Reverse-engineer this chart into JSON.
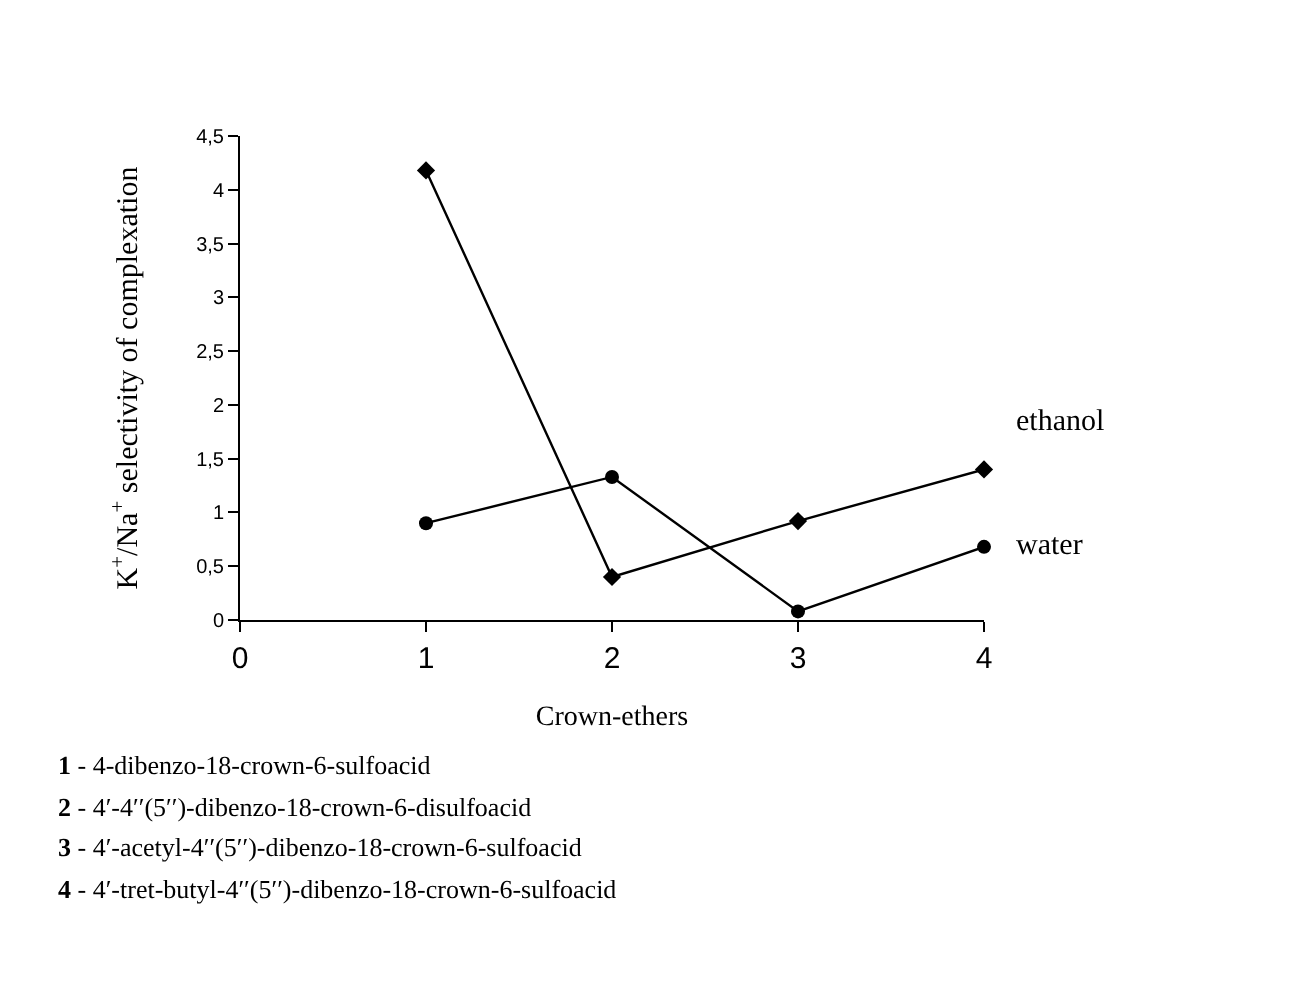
{
  "chart_data": {
    "type": "line",
    "xlabel": "Crown-ethers",
    "ylabel": "K$^{+}$/Na$^{+}$ selectivity of complexation",
    "x": [
      1,
      2,
      3,
      4
    ],
    "series": [
      {
        "name": "ethanol",
        "color": "#000000",
        "marker": "diamond",
        "values": [
          4.18,
          0.4,
          0.92,
          1.4
        ]
      },
      {
        "name": "water",
        "color": "#000000",
        "marker": "circle",
        "values": [
          0.9,
          1.33,
          0.08,
          0.68
        ]
      }
    ],
    "xlim": [
      0,
      4
    ],
    "xticks": [
      0,
      1,
      2,
      3,
      4
    ],
    "ylim": [
      0,
      4.5
    ],
    "yticks": [
      {
        "value": 0,
        "label": "0"
      },
      {
        "value": 0.5,
        "label": "0,5"
      },
      {
        "value": 1,
        "label": "1"
      },
      {
        "value": 1.5,
        "label": "1,5"
      },
      {
        "value": 2,
        "label": "2"
      },
      {
        "value": 2.5,
        "label": "2,5"
      },
      {
        "value": 3,
        "label": "3"
      },
      {
        "value": 3.5,
        "label": "3,5"
      },
      {
        "value": 4,
        "label": "4"
      },
      {
        "value": 4.5,
        "label": "4,5"
      }
    ],
    "legend": false,
    "line_style": "solid",
    "annotations": [
      "1 - 4-dibenzo-18-crown-6-sulfoacid",
      "2 - 4′-4′′(5′′)-dibenzo-18-crown-6-disulfoacid",
      "3 - 4′-acetyl-4′′(5′′)-dibenzo-18-crown-6-sulfoacid",
      "4 - 4′-tret-butyl-4′′(5′′)-dibenzo-18-crown-6-sulfoacid"
    ]
  }
}
